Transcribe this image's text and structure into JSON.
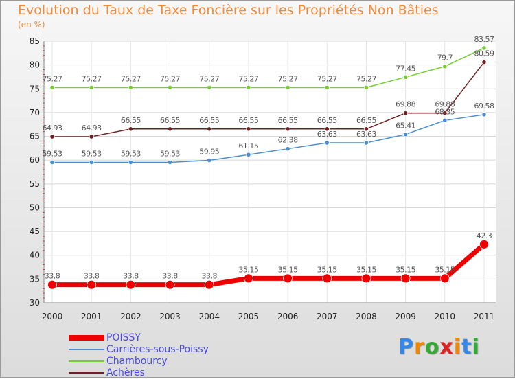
{
  "header": {
    "title": "Evolution du Taux de Taxe Foncière sur les Propriétés Non Bâties",
    "unit": "(en %)"
  },
  "chart_data": {
    "type": "line",
    "title": "Evolution du Taux de Taxe Foncière sur les Propriétés Non Bâties",
    "ylabel": "(en %)",
    "xlabel": "",
    "ylim": [
      30,
      85
    ],
    "yticks": [
      30,
      35,
      40,
      45,
      50,
      55,
      60,
      65,
      70,
      75,
      80,
      85
    ],
    "x": [
      "2000",
      "2001",
      "2002",
      "2003",
      "2004",
      "2005",
      "2006",
      "2007",
      "2008",
      "2009",
      "2010",
      "2011"
    ],
    "grid": true,
    "legend_placement": "bottom-left",
    "series": [
      {
        "name": "POISSY",
        "color": "#ee0000",
        "values": [
          33.8,
          33.8,
          33.8,
          33.8,
          33.8,
          35.15,
          35.15,
          35.15,
          35.15,
          35.15,
          35.15,
          42.3
        ],
        "labels": [
          "33.8",
          "33.8",
          "33.8",
          "33.8",
          "33.8",
          "35.15",
          "35.15",
          "35.15",
          "35.15",
          "35.15",
          "35.15",
          "42.3"
        ]
      },
      {
        "name": "Carrières-sous-Poissy",
        "color": "#4a8ed0",
        "values": [
          59.53,
          59.53,
          59.53,
          59.53,
          59.95,
          61.15,
          62.38,
          63.63,
          63.63,
          65.41,
          68.35,
          69.58
        ],
        "labels": [
          "59.53",
          "59.53",
          "59.53",
          "59.53",
          "59.95",
          "61.15",
          "62.38",
          "63.63",
          "63.63",
          "65.41",
          "68.35",
          "69.58"
        ]
      },
      {
        "name": "Chambourcy",
        "color": "#77cc33",
        "values": [
          75.27,
          75.27,
          75.27,
          75.27,
          75.27,
          75.27,
          75.27,
          75.27,
          75.27,
          77.45,
          79.7,
          83.57
        ],
        "labels": [
          "75.27",
          "75.27",
          "75.27",
          "75.27",
          "75.27",
          "75.27",
          "75.27",
          "75.27",
          "75.27",
          "77.45",
          "79.7",
          "83.57"
        ]
      },
      {
        "name": "Achères",
        "color": "#702020",
        "values": [
          64.93,
          64.93,
          66.55,
          66.55,
          66.55,
          66.55,
          66.55,
          66.55,
          66.55,
          69.88,
          69.88,
          80.59
        ],
        "labels": [
          "64.93",
          "64.93",
          "66.55",
          "66.55",
          "66.55",
          "66.55",
          "66.55",
          "66.55",
          "66.55",
          "69.88",
          "69.88",
          "80.59"
        ]
      }
    ]
  },
  "logo": {
    "letters": [
      "P",
      "r",
      "o",
      "x",
      "i",
      "t",
      "i"
    ],
    "colors": [
      "#3388ee",
      "#ee8800",
      "#33aa33",
      "#dd2222",
      "#ee8800",
      "#3388ee",
      "#33aa33"
    ]
  }
}
